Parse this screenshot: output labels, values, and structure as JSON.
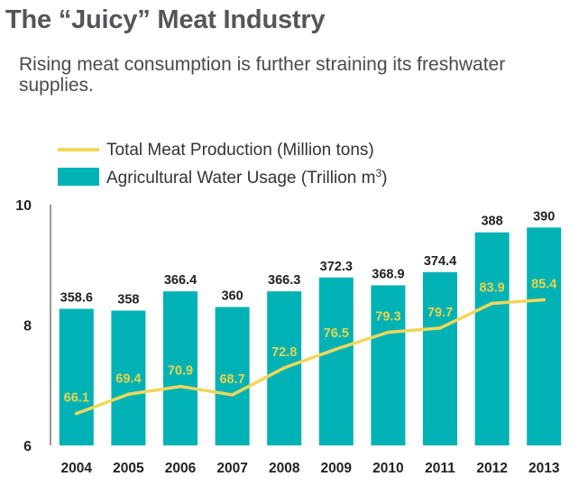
{
  "header": {
    "title": "The “Juicy” Meat Industry",
    "subtitle": "Rising meat consumption is further straining its freshwater supplies."
  },
  "colors": {
    "bar": "#00b2b5",
    "line": "#f1d75a",
    "axis": "#333333"
  },
  "chart_data": {
    "type": "bar",
    "title": "The “Juicy” Meat Industry",
    "categories": [
      "2004",
      "2005",
      "2006",
      "2007",
      "2008",
      "2009",
      "2010",
      "2011",
      "2012",
      "2013"
    ],
    "ylim": [
      6,
      10
    ],
    "yticks": [
      6,
      8,
      10
    ],
    "series": [
      {
        "name": "Agricultural Water Usage (Trillion m³)",
        "kind": "bar",
        "values": [
          8.27,
          8.24,
          8.56,
          8.3,
          8.56,
          8.79,
          8.66,
          8.88,
          9.54,
          9.62
        ],
        "labels": [
          "358.6",
          "358",
          "366.4",
          "360",
          "366.3",
          "372.3",
          "368.9",
          "374.4",
          "388",
          "390"
        ]
      },
      {
        "name": "Total Meat Production (Million tons)",
        "kind": "line",
        "values": [
          6.53,
          6.85,
          6.98,
          6.84,
          7.29,
          7.6,
          7.88,
          7.95,
          8.36,
          8.42
        ],
        "labels": [
          "66.1",
          "69.4",
          "70.9",
          "68.7",
          "72.8",
          "76.5",
          "79.3",
          "79.7",
          "83.9",
          "85.4"
        ]
      }
    ],
    "legend": {
      "line_label": "Total Meat Production (Million tons)",
      "bar_label_main": "Agricultural Water Usage (Trillion m",
      "bar_label_sup": "3",
      "bar_label_end": ")"
    }
  }
}
